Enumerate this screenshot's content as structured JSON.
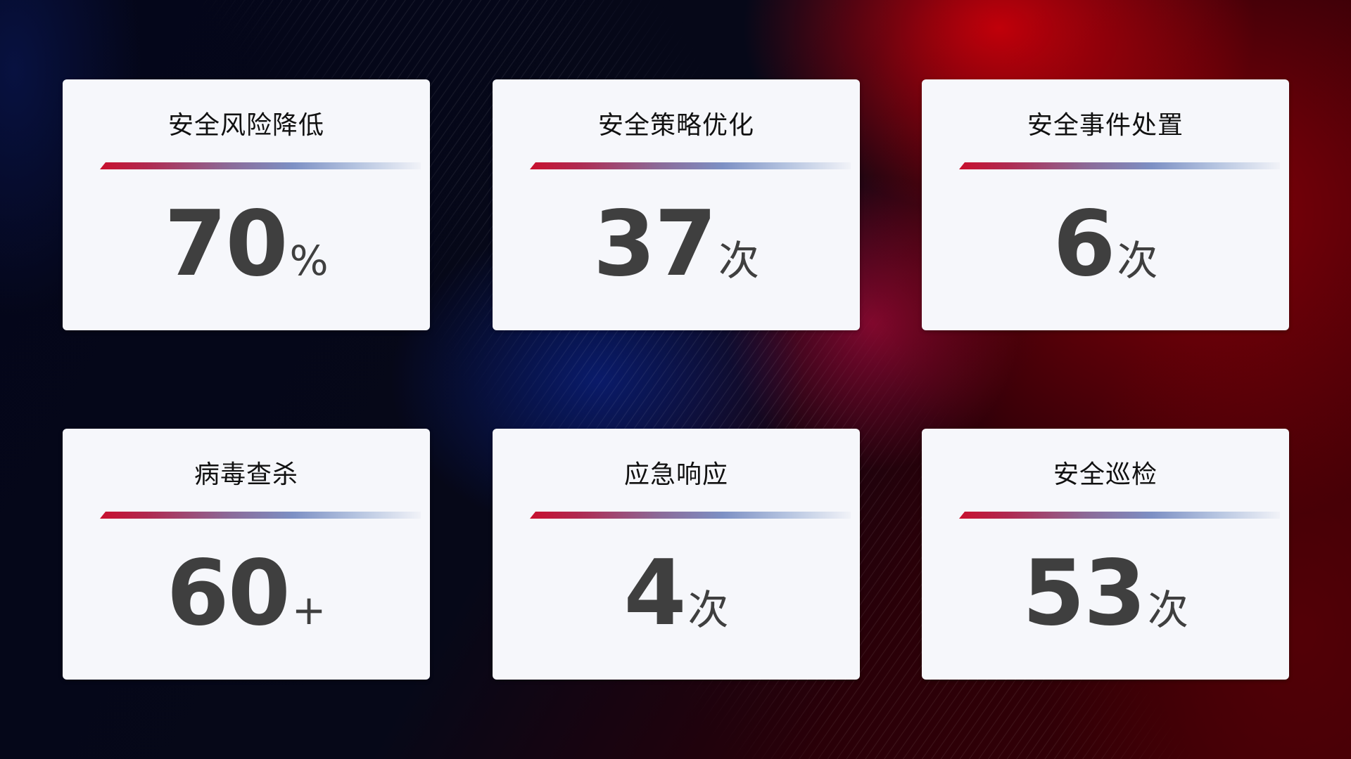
{
  "cards": [
    {
      "title": "安全风险降低",
      "value": "70",
      "unit": "%"
    },
    {
      "title": "安全策略优化",
      "value": "37",
      "unit": "次"
    },
    {
      "title": "安全事件处置",
      "value": "6",
      "unit": "次"
    },
    {
      "title": "病毒查杀",
      "value": "60",
      "unit": "+"
    },
    {
      "title": "应急响应",
      "value": "4",
      "unit": "次"
    },
    {
      "title": "安全巡检",
      "value": "53",
      "unit": "次"
    }
  ],
  "colors": {
    "accent_red": "#c8102e",
    "accent_blue": "#7d90c4",
    "card_bg": "#f6f7fb",
    "value_text": "#3f3f3f"
  }
}
